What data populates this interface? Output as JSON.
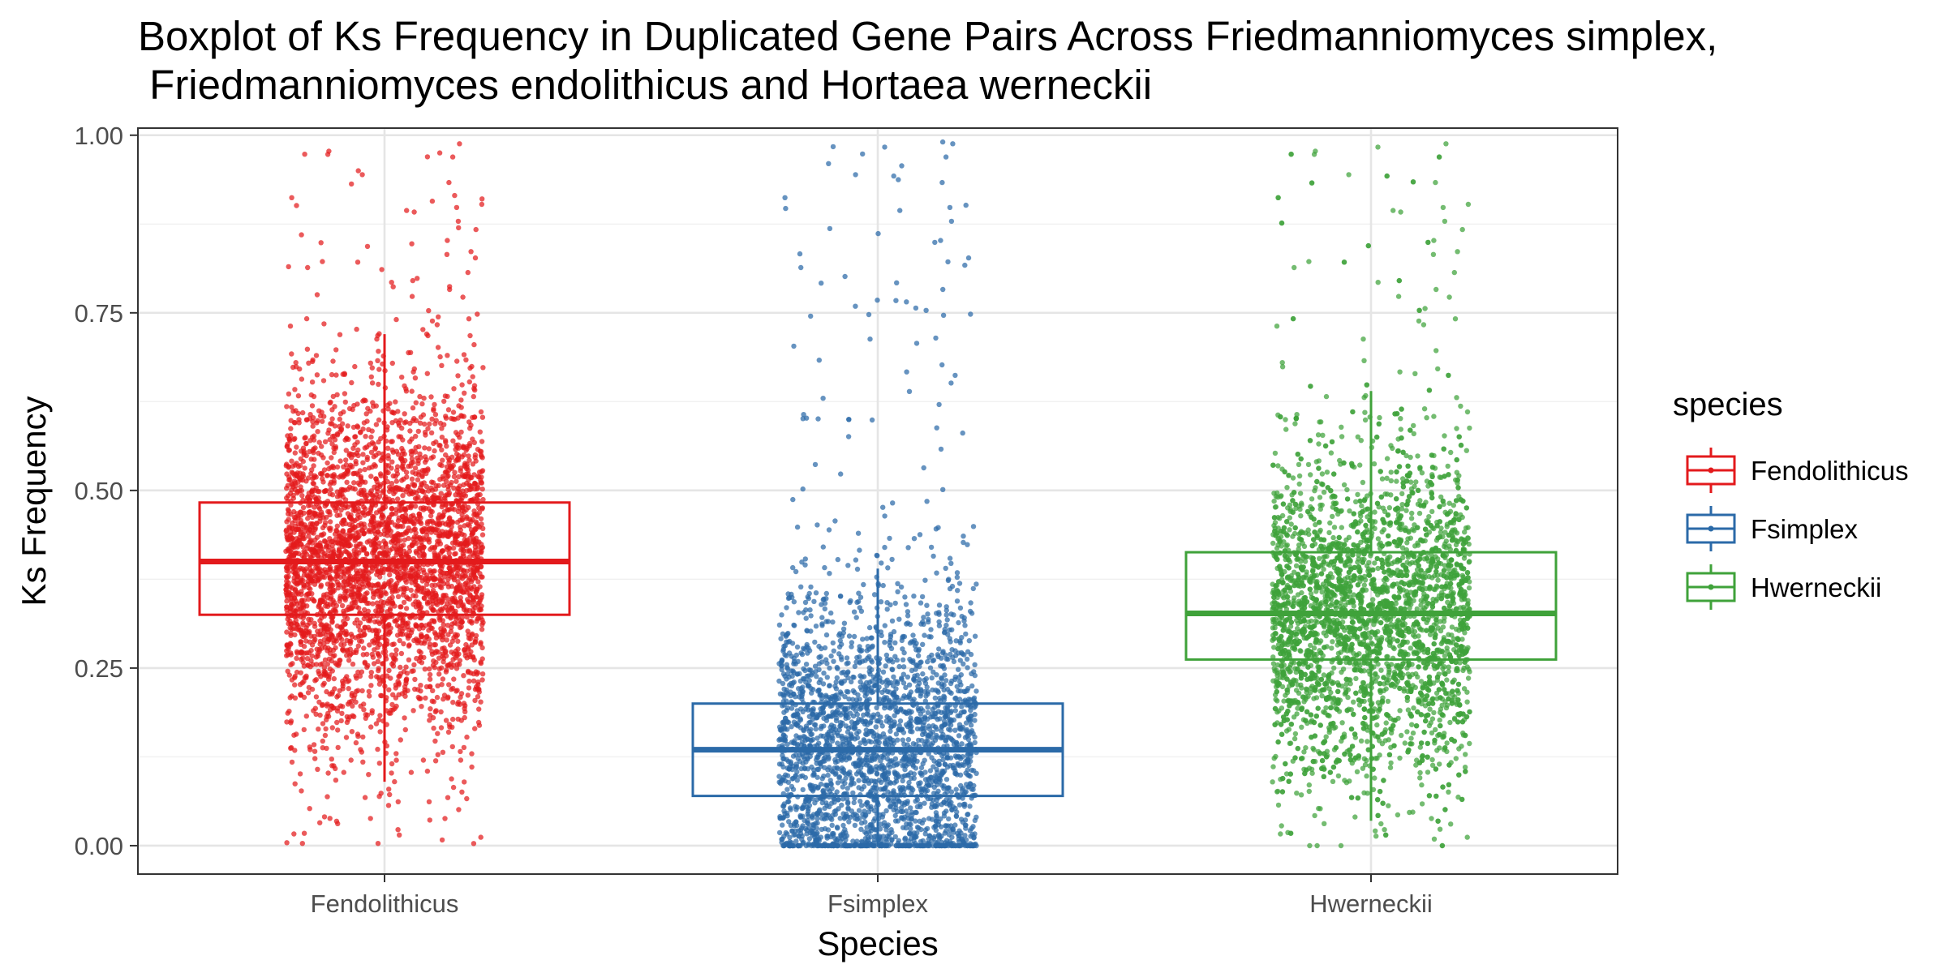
{
  "chart_data": {
    "type": "boxplot",
    "title_lines": [
      "Boxplot of Ks Frequency in Duplicated Gene Pairs Across Friedmanniomyces simplex,",
      " Friedmanniomyces endolithicus and Hortaea werneckii"
    ],
    "xlabel": "Species",
    "ylabel": "Ks Frequency",
    "ylim": [
      -0.04,
      1.01
    ],
    "yticks": [
      0.0,
      0.25,
      0.5,
      0.75,
      1.0
    ],
    "ytick_labels": [
      "0.00",
      "0.25",
      "0.50",
      "0.75",
      "1.00"
    ],
    "categories": [
      "Fendolithicus",
      "Fsimplex",
      "Hwerneckii"
    ],
    "grid": true,
    "legend": {
      "title": "species",
      "placement": "right"
    },
    "series": [
      {
        "name": "Fendolithicus",
        "color": "#e31a1c",
        "min": 0.0,
        "q1": 0.325,
        "median": 0.4,
        "q3": 0.483,
        "whisker_low": 0.09,
        "whisker_high": 0.72,
        "max": 1.0
      },
      {
        "name": "Fsimplex",
        "color": "#2b6aa8",
        "min": 0.0,
        "q1": 0.07,
        "median": 0.135,
        "q3": 0.2,
        "whisker_low": 0.0,
        "whisker_high": 0.39,
        "max": 1.0
      },
      {
        "name": "Hwerneckii",
        "color": "#3fa23a",
        "min": 0.0,
        "q1": 0.262,
        "median": 0.327,
        "q3": 0.413,
        "whisker_low": 0.035,
        "whisker_high": 0.64,
        "max": 1.0
      }
    ]
  }
}
